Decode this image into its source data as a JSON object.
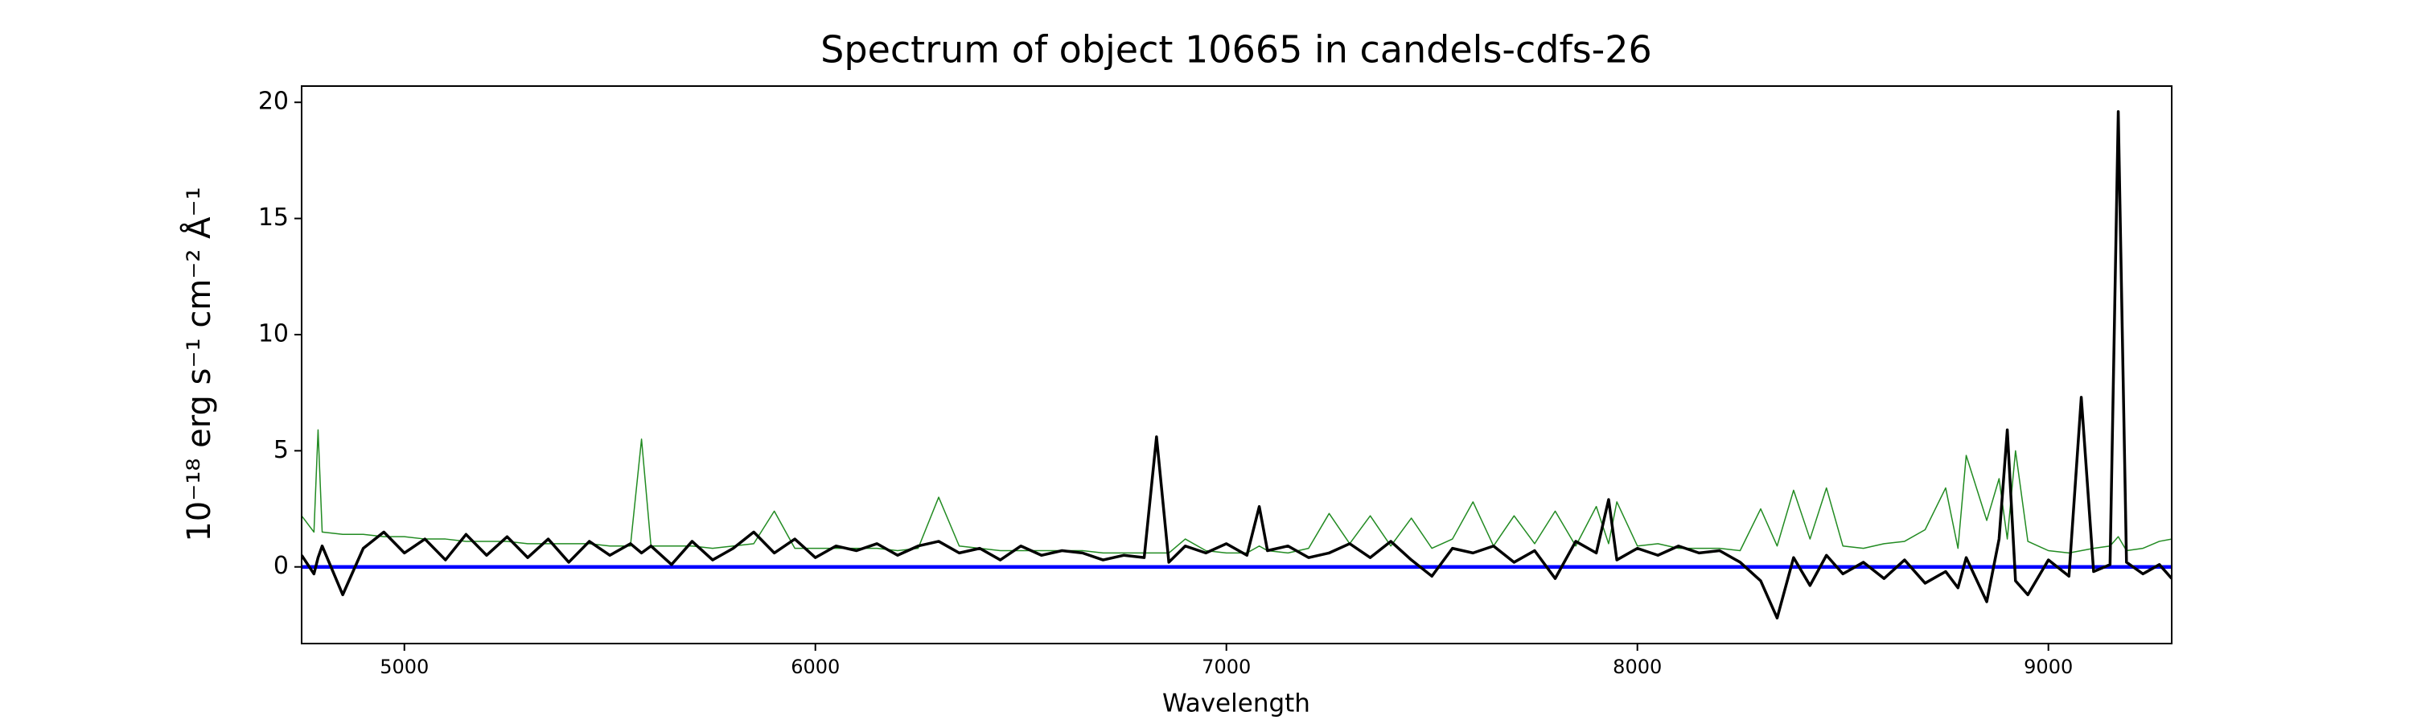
{
  "chart_data": {
    "type": "line",
    "title": "Spectrum of object 10665 in candels-cdfs-26",
    "xlabel": "Wavelength",
    "ylabel": "10⁻¹⁸ erg s⁻¹ cm⁻² Å⁻¹",
    "xlim": [
      4750,
      9300
    ],
    "ylim": [
      -3.3,
      20.7
    ],
    "xticks": [
      5000,
      6000,
      7000,
      8000,
      9000
    ],
    "yticks": [
      0,
      5,
      10,
      15,
      20
    ],
    "grid": false,
    "x": [
      4750,
      4780,
      4790,
      4800,
      4850,
      4900,
      4950,
      5000,
      5050,
      5100,
      5150,
      5200,
      5250,
      5300,
      5350,
      5400,
      5450,
      5500,
      5550,
      5577,
      5600,
      5650,
      5700,
      5750,
      5800,
      5850,
      5900,
      5950,
      6000,
      6050,
      6100,
      6150,
      6200,
      6250,
      6300,
      6350,
      6400,
      6450,
      6500,
      6550,
      6600,
      6650,
      6700,
      6750,
      6800,
      6830,
      6860,
      6900,
      6950,
      7000,
      7050,
      7080,
      7100,
      7150,
      7200,
      7250,
      7300,
      7350,
      7400,
      7450,
      7500,
      7550,
      7600,
      7650,
      7700,
      7750,
      7800,
      7850,
      7900,
      7930,
      7950,
      8000,
      8050,
      8100,
      8150,
      8200,
      8250,
      8300,
      8340,
      8380,
      8420,
      8460,
      8500,
      8550,
      8600,
      8650,
      8700,
      8750,
      8780,
      8800,
      8850,
      8880,
      8900,
      8920,
      8950,
      9000,
      9050,
      9080,
      9110,
      9150,
      9170,
      9190,
      9230,
      9270,
      9300
    ],
    "series": [
      {
        "color": "#228b22",
        "width": 1.5,
        "values": [
          2.2,
          1.5,
          5.9,
          1.5,
          1.4,
          1.4,
          1.3,
          1.3,
          1.2,
          1.2,
          1.1,
          1.1,
          1.1,
          1.0,
          1.0,
          1.0,
          1.0,
          0.9,
          0.9,
          5.5,
          0.9,
          0.9,
          0.9,
          0.8,
          0.9,
          1.0,
          2.4,
          0.8,
          0.8,
          0.8,
          0.8,
          0.8,
          0.7,
          0.8,
          3.0,
          0.9,
          0.8,
          0.7,
          0.7,
          0.7,
          0.7,
          0.7,
          0.6,
          0.6,
          0.6,
          0.6,
          0.6,
          1.2,
          0.7,
          0.6,
          0.6,
          0.9,
          0.7,
          0.6,
          0.8,
          2.3,
          1.0,
          2.2,
          0.9,
          2.1,
          0.8,
          1.2,
          2.8,
          0.9,
          2.2,
          1.0,
          2.4,
          0.9,
          2.6,
          1.0,
          2.8,
          0.9,
          1.0,
          0.8,
          0.8,
          0.8,
          0.7,
          2.5,
          0.9,
          3.3,
          1.2,
          3.4,
          0.9,
          0.8,
          1.0,
          1.1,
          1.6,
          3.4,
          0.8,
          4.8,
          2.0,
          3.8,
          1.2,
          5.0,
          1.1,
          0.7,
          0.6,
          0.7,
          0.8,
          0.9,
          1.3,
          0.7,
          0.8,
          1.1,
          1.2
        ]
      },
      {
        "color": "#0000ff",
        "width": 4.5,
        "x": [
          4750,
          9300
        ],
        "values": [
          0,
          0
        ]
      },
      {
        "color": "#000000",
        "width": 3.5,
        "values": [
          0.5,
          -0.3,
          0.4,
          0.9,
          -1.2,
          0.8,
          1.5,
          0.6,
          1.2,
          0.3,
          1.4,
          0.5,
          1.3,
          0.4,
          1.2,
          0.2,
          1.1,
          0.5,
          1.0,
          0.6,
          0.9,
          0.1,
          1.1,
          0.3,
          0.8,
          1.5,
          0.6,
          1.2,
          0.4,
          0.9,
          0.7,
          1.0,
          0.5,
          0.9,
          1.1,
          0.6,
          0.8,
          0.3,
          0.9,
          0.5,
          0.7,
          0.6,
          0.3,
          0.5,
          0.4,
          5.6,
          0.2,
          0.9,
          0.6,
          1.0,
          0.5,
          2.6,
          0.7,
          0.9,
          0.4,
          0.6,
          1.0,
          0.4,
          1.1,
          0.3,
          -0.4,
          0.8,
          0.6,
          0.9,
          0.2,
          0.7,
          -0.5,
          1.1,
          0.6,
          2.9,
          0.3,
          0.8,
          0.5,
          0.9,
          0.6,
          0.7,
          0.2,
          -0.6,
          -2.2,
          0.4,
          -0.8,
          0.5,
          -0.3,
          0.2,
          -0.5,
          0.3,
          -0.7,
          -0.2,
          -0.9,
          0.4,
          -1.5,
          1.2,
          5.9,
          -0.6,
          -1.2,
          0.3,
          -0.4,
          7.3,
          -0.2,
          0.1,
          19.6,
          0.2,
          -0.3,
          0.1,
          -0.5
        ]
      }
    ]
  }
}
